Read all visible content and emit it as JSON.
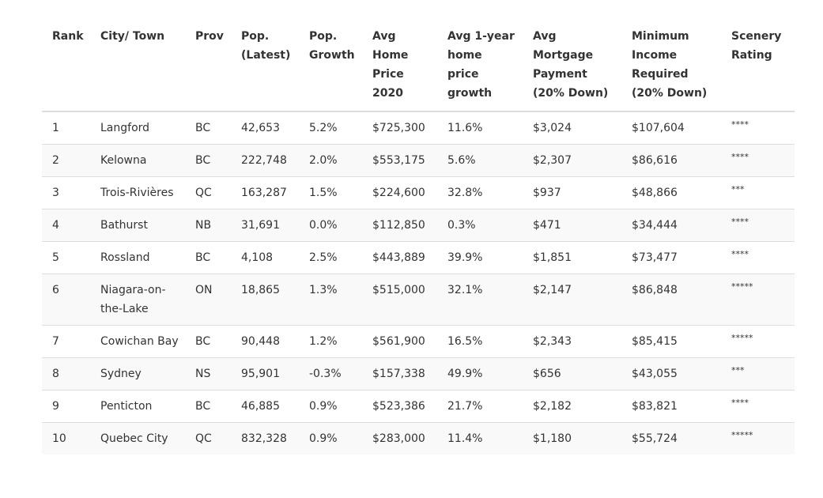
{
  "table": {
    "headers": [
      "Rank",
      "City/ Town",
      "Prov",
      "Pop. (Latest)",
      "Pop. Growth",
      "Avg Home Price 2020",
      "Avg 1-year home price growth",
      "Avg Mortgage Payment (20% Down)",
      "Minimum Income Required (20% Down)",
      "Scenery Rating"
    ],
    "rows": [
      [
        "1",
        "Langford",
        "BC",
        "42,653",
        "5.2%",
        "$725,300",
        "11.6%",
        "$3,024",
        "$107,604",
        "****"
      ],
      [
        "2",
        "Kelowna",
        "BC",
        "222,748",
        "2.0%",
        "$553,175",
        "5.6%",
        "$2,307",
        "$86,616",
        "****"
      ],
      [
        "3",
        "Trois-Rivières",
        "QC",
        "163,287",
        "1.5%",
        "$224,600",
        "32.8%",
        "$937",
        "$48,866",
        "***"
      ],
      [
        "4",
        "Bathurst",
        "NB",
        "31,691",
        "0.0%",
        "$112,850",
        "0.3%",
        "$471",
        "$34,444",
        "****"
      ],
      [
        "5",
        "Rossland",
        "BC",
        "4,108",
        "2.5%",
        "$443,889",
        "39.9%",
        "$1,851",
        "$73,477",
        "****"
      ],
      [
        "6",
        "Niagara-on-the-Lake",
        "ON",
        "18,865",
        "1.3%",
        "$515,000",
        "32.1%",
        "$2,147",
        "$86,848",
        "*****"
      ],
      [
        "7",
        "Cowichan Bay",
        "BC",
        "90,448",
        "1.2%",
        "$561,900",
        "16.5%",
        "$2,343",
        "$85,415",
        "*****"
      ],
      [
        "8",
        "Sydney",
        "NS",
        "95,901",
        "-0.3%",
        "$157,338",
        "49.9%",
        "$656",
        "$43,055",
        "***"
      ],
      [
        "9",
        "Penticton",
        "BC",
        "46,885",
        "0.9%",
        "$523,386",
        "21.7%",
        "$2,182",
        "$83,821",
        "****"
      ],
      [
        "10",
        "Quebec City",
        "QC",
        "832,328",
        "0.9%",
        "$283,000",
        "11.4%",
        "$1,180",
        "$55,724",
        "*****"
      ]
    ]
  }
}
